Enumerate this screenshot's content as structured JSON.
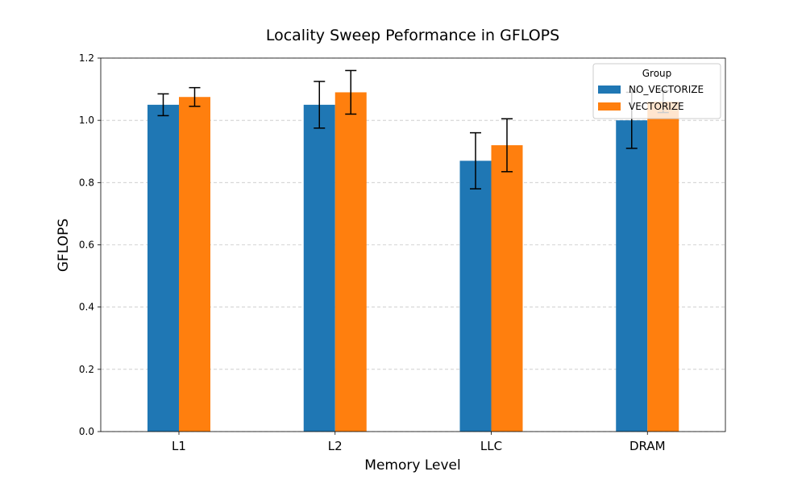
{
  "chart_data": {
    "type": "bar",
    "title": "Locality Sweep Peformance in GFLOPS",
    "xlabel": "Memory Level",
    "ylabel": "GFLOPS",
    "categories": [
      "L1",
      "L2",
      "LLC",
      "DRAM"
    ],
    "ylim": [
      0,
      1.2
    ],
    "yticks": [
      "0.0",
      "0.2",
      "0.4",
      "0.6",
      "0.8",
      "1.0",
      "1.2"
    ],
    "grid": "horizontal dashed",
    "legend": {
      "title": "Group",
      "placement": "top-right"
    },
    "series": [
      {
        "name": "NO_VECTORIZE",
        "color": "#1f77b4",
        "values": [
          1.05,
          1.05,
          0.87,
          1.0
        ],
        "error": [
          0.035,
          0.075,
          0.09,
          0.09
        ]
      },
      {
        "name": "VECTORIZE",
        "color": "#ff7f0e",
        "values": [
          1.075,
          1.09,
          0.92,
          1.06
        ],
        "error": [
          0.03,
          0.07,
          0.085,
          0.035
        ]
      }
    ]
  }
}
